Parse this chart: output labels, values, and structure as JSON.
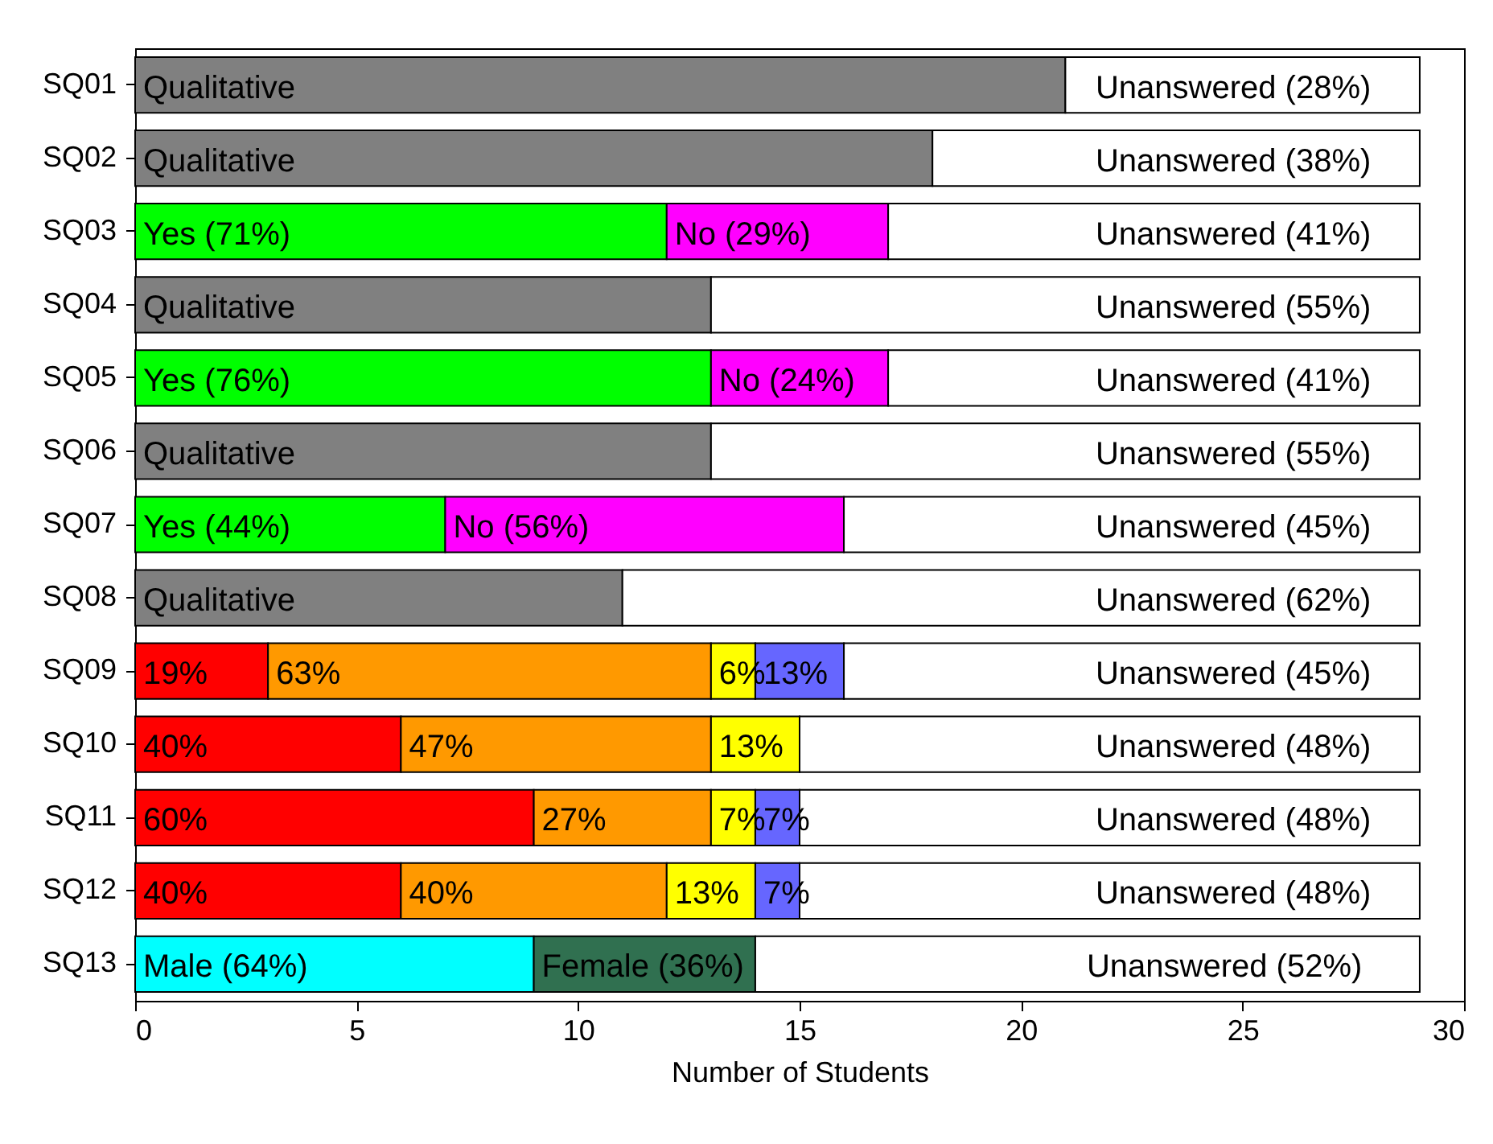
{
  "chart_data": {
    "type": "bar",
    "orientation": "horizontal",
    "stacked": true,
    "xlabel": "Number of Students",
    "categories": [
      "SQ01",
      "SQ02",
      "SQ03",
      "SQ04",
      "SQ05",
      "SQ06",
      "SQ07",
      "SQ08",
      "SQ09",
      "SQ10",
      "SQ11",
      "SQ12",
      "SQ13"
    ],
    "xlim": [
      0,
      30
    ],
    "xticks": [
      0,
      5,
      10,
      15,
      20,
      25,
      30
    ],
    "series": [
      {
        "color": "#808080",
        "values": [
          21,
          18,
          null,
          13,
          null,
          13,
          null,
          11,
          null,
          null,
          null,
          null,
          null
        ]
      },
      {
        "color": "#00ff00",
        "values": [
          null,
          null,
          12,
          null,
          13,
          null,
          7,
          null,
          null,
          null,
          null,
          null,
          null
        ]
      },
      {
        "color": "#00ffff",
        "values": [
          null,
          null,
          null,
          null,
          null,
          null,
          null,
          null,
          null,
          null,
          null,
          null,
          9
        ]
      },
      {
        "color": "#ff0000",
        "values": [
          null,
          null,
          null,
          null,
          null,
          null,
          null,
          null,
          3,
          6,
          9,
          6,
          null
        ]
      },
      {
        "color": "#ff00ff",
        "values": [
          null,
          null,
          5,
          null,
          4,
          null,
          9,
          null,
          null,
          null,
          null,
          null,
          null
        ]
      },
      {
        "color": "#307050",
        "values": [
          null,
          null,
          null,
          null,
          null,
          null,
          null,
          null,
          null,
          null,
          null,
          null,
          5
        ]
      },
      {
        "color": "#ff9900",
        "values": [
          null,
          null,
          null,
          null,
          null,
          null,
          null,
          null,
          10,
          7,
          4,
          6,
          null
        ]
      },
      {
        "color": "#ffff00",
        "values": [
          null,
          null,
          null,
          null,
          null,
          null,
          null,
          null,
          1,
          2,
          1,
          2,
          null
        ]
      },
      {
        "color": "#6666ff",
        "values": [
          null,
          null,
          null,
          null,
          null,
          null,
          null,
          null,
          2,
          null,
          1,
          1,
          null
        ]
      },
      {
        "color": "#ffffff",
        "values": [
          8,
          11,
          12,
          16,
          12,
          16,
          13,
          18,
          13,
          14,
          14,
          14,
          15
        ]
      }
    ],
    "annotations": [
      {
        "text": "Qualitative",
        "x": 0,
        "y": "SQ01"
      },
      {
        "text": "Unanswered (28%)",
        "x": 21.5,
        "y": "SQ01"
      },
      {
        "text": "Qualitative",
        "x": 0,
        "y": "SQ02"
      },
      {
        "text": "Unanswered (38%)",
        "x": 21.5,
        "y": "SQ02"
      },
      {
        "text": "Yes (71%)",
        "x": 0,
        "y": "SQ03"
      },
      {
        "text": "No (29%)",
        "x": 12,
        "y": "SQ03"
      },
      {
        "text": "Unanswered (41%)",
        "x": 21.5,
        "y": "SQ03"
      },
      {
        "text": "Qualitative",
        "x": 0,
        "y": "SQ04"
      },
      {
        "text": "Unanswered (55%)",
        "x": 21.5,
        "y": "SQ04"
      },
      {
        "text": "Yes (76%)",
        "x": 0,
        "y": "SQ05"
      },
      {
        "text": "No (24%)",
        "x": 13,
        "y": "SQ05"
      },
      {
        "text": "Unanswered (41%)",
        "x": 21.5,
        "y": "SQ05"
      },
      {
        "text": "Qualitative",
        "x": 0,
        "y": "SQ06"
      },
      {
        "text": "Unanswered (55%)",
        "x": 21.5,
        "y": "SQ06"
      },
      {
        "text": "Yes (44%)",
        "x": 0,
        "y": "SQ07"
      },
      {
        "text": "No (56%)",
        "x": 7,
        "y": "SQ07"
      },
      {
        "text": "Unanswered (45%)",
        "x": 21.5,
        "y": "SQ07"
      },
      {
        "text": "Qualitative",
        "x": 0,
        "y": "SQ08"
      },
      {
        "text": "Unanswered (62%)",
        "x": 21.5,
        "y": "SQ08"
      },
      {
        "text": "19%",
        "x": 0,
        "y": "SQ09"
      },
      {
        "text": "63%",
        "x": 3,
        "y": "SQ09"
      },
      {
        "text": "6%",
        "x": 13,
        "y": "SQ09"
      },
      {
        "text": "13%",
        "x": 14,
        "y": "SQ09"
      },
      {
        "text": "Unanswered (45%)",
        "x": 21.5,
        "y": "SQ09"
      },
      {
        "text": "40%",
        "x": 0,
        "y": "SQ10"
      },
      {
        "text": "47%",
        "x": 6,
        "y": "SQ10"
      },
      {
        "text": "13%",
        "x": 13,
        "y": "SQ10"
      },
      {
        "text": "Unanswered (48%)",
        "x": 21.5,
        "y": "SQ10"
      },
      {
        "text": "60%",
        "x": 0,
        "y": "SQ11"
      },
      {
        "text": "27%",
        "x": 9,
        "y": "SQ11"
      },
      {
        "text": "7%",
        "x": 13,
        "y": "SQ11"
      },
      {
        "text": "7%",
        "x": 14,
        "y": "SQ11"
      },
      {
        "text": "Unanswered (48%)",
        "x": 21.5,
        "y": "SQ11"
      },
      {
        "text": "40%",
        "x": 0,
        "y": "SQ12"
      },
      {
        "text": "40%",
        "x": 6,
        "y": "SQ12"
      },
      {
        "text": "13%",
        "x": 12,
        "y": "SQ12"
      },
      {
        "text": "7%",
        "x": 14,
        "y": "SQ12"
      },
      {
        "text": "Unanswered (48%)",
        "x": 21.5,
        "y": "SQ12"
      },
      {
        "text": "Male (64%)",
        "x": 0,
        "y": "SQ13"
      },
      {
        "text": "Female (36%)",
        "x": 9,
        "y": "SQ13"
      },
      {
        "text": "Unanswered (52%)",
        "x": 21.3,
        "y": "SQ13"
      }
    ]
  }
}
